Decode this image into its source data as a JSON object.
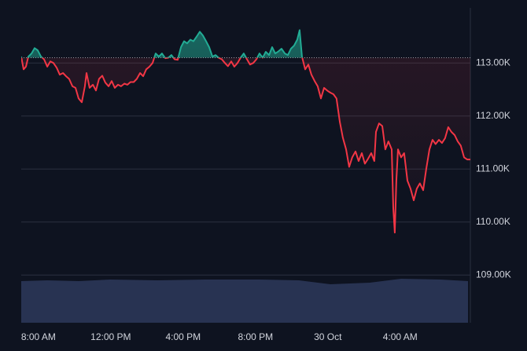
{
  "chart_data": {
    "type": "baseline",
    "baseline": 113100,
    "up_color": "#22ab94",
    "down_color": "#f23645",
    "xlim": [
      7.05,
      31.88
    ],
    "ylim": [
      108100,
      114040
    ],
    "xticks": [
      {
        "value": 8,
        "label": "8:00 AM"
      },
      {
        "value": 12,
        "label": "12:00 PM"
      },
      {
        "value": 16,
        "label": "4:00 PM"
      },
      {
        "value": 20,
        "label": "8:00 PM"
      },
      {
        "value": 24,
        "label": "30 Oct"
      },
      {
        "value": 28,
        "label": "4:00 AM"
      }
    ],
    "yticks": [
      {
        "value": 113000,
        "label": "113.00K"
      },
      {
        "value": 112000,
        "label": "112.00K"
      },
      {
        "value": 111000,
        "label": "111.00K"
      },
      {
        "value": 110000,
        "label": "110.00K"
      },
      {
        "value": 109000,
        "label": "109.00K"
      }
    ],
    "grid": true,
    "x": [
      7.05,
      7.18,
      7.31,
      7.44,
      7.62,
      7.79,
      7.96,
      8.14,
      8.31,
      8.49,
      8.66,
      8.83,
      9.01,
      9.18,
      9.36,
      9.53,
      9.7,
      9.88,
      10.05,
      10.22,
      10.4,
      10.57,
      10.66,
      10.83,
      11.01,
      11.18,
      11.35,
      11.53,
      11.7,
      11.88,
      12.05,
      12.22,
      12.4,
      12.57,
      12.75,
      12.92,
      13.09,
      13.27,
      13.44,
      13.62,
      13.79,
      13.96,
      14.14,
      14.31,
      14.48,
      14.66,
      14.83,
      15.01,
      15.18,
      15.35,
      15.53,
      15.7,
      15.88,
      16.05,
      16.22,
      16.4,
      16.57,
      16.75,
      16.92,
      17.09,
      17.27,
      17.44,
      17.62,
      17.79,
      17.96,
      18.14,
      18.31,
      18.48,
      18.66,
      18.83,
      19.01,
      19.18,
      19.35,
      19.53,
      19.7,
      19.88,
      20.05,
      20.22,
      20.4,
      20.57,
      20.75,
      20.92,
      21.09,
      21.27,
      21.44,
      21.62,
      21.79,
      21.96,
      22.14,
      22.31,
      22.44,
      22.57,
      22.75,
      22.92,
      23.09,
      23.27,
      23.44,
      23.62,
      23.79,
      23.96,
      24.14,
      24.31,
      24.48,
      24.66,
      24.83,
      25.01,
      25.18,
      25.35,
      25.53,
      25.7,
      25.88,
      26.05,
      26.22,
      26.4,
      26.57,
      26.66,
      26.83,
      27.01,
      27.18,
      27.35,
      27.53,
      27.62,
      27.7,
      27.79,
      27.88,
      28.05,
      28.22,
      28.4,
      28.57,
      28.75,
      28.92,
      29.09,
      29.27,
      29.44,
      29.62,
      29.79,
      29.96,
      30.14,
      30.31,
      30.48,
      30.66,
      30.83,
      31.01,
      31.18,
      31.35,
      31.53,
      31.7,
      31.88
    ],
    "values": [
      113120,
      112880,
      112930,
      113120,
      113180,
      113280,
      113240,
      113120,
      113070,
      112930,
      113030,
      113000,
      112910,
      112780,
      112810,
      112750,
      112700,
      112560,
      112530,
      112330,
      112260,
      112560,
      112810,
      112530,
      112590,
      112480,
      112700,
      112760,
      112630,
      112560,
      112660,
      112530,
      112590,
      112560,
      112610,
      112590,
      112640,
      112640,
      112700,
      112810,
      112750,
      112880,
      112930,
      113000,
      113180,
      113120,
      113180,
      113090,
      113100,
      113150,
      113070,
      113060,
      113300,
      113410,
      113370,
      113440,
      113410,
      113500,
      113590,
      113520,
      113410,
      113300,
      113120,
      113150,
      113100,
      113070,
      113000,
      112940,
      113030,
      112930,
      113000,
      113100,
      113180,
      113070,
      112970,
      113000,
      113070,
      113180,
      113100,
      113210,
      113150,
      113300,
      113180,
      113220,
      113270,
      113180,
      113150,
      113270,
      113330,
      113440,
      113620,
      113120,
      112880,
      112970,
      112780,
      112660,
      112560,
      112330,
      112530,
      112480,
      112440,
      112410,
      112330,
      111890,
      111590,
      111370,
      111040,
      111220,
      111330,
      111150,
      111300,
      111100,
      111190,
      111300,
      111150,
      111700,
      111860,
      111810,
      111370,
      111520,
      111370,
      110260,
      109800,
      110780,
      111370,
      111220,
      111300,
      110780,
      110630,
      110410,
      110630,
      110730,
      110600,
      111000,
      111370,
      111550,
      111470,
      111550,
      111490,
      111580,
      111790,
      111700,
      111640,
      111520,
      111440,
      111220,
      111180,
      111180
    ]
  }
}
